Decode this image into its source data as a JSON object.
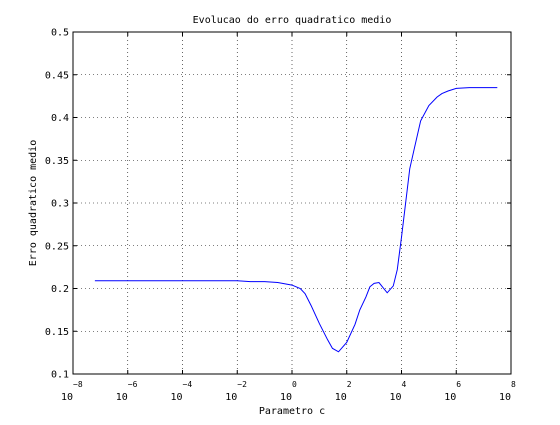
{
  "chart_data": {
    "type": "line",
    "title": "Evolucao do erro quadratico medio",
    "xlabel": "Parametro c",
    "ylabel": "Erro quadratico medio",
    "x_scale": "log",
    "xlim": [
      1e-08,
      100000000.0
    ],
    "ylim": [
      0.1,
      0.5
    ],
    "grid": true,
    "x_tick_base": "10",
    "x_ticks": [
      {
        "value": 1e-08,
        "exponent": "−8"
      },
      {
        "value": 1e-06,
        "exponent": "−6"
      },
      {
        "value": 0.0001,
        "exponent": "−4"
      },
      {
        "value": 0.01,
        "exponent": "−2"
      },
      {
        "value": 1,
        "exponent": "0"
      },
      {
        "value": 100.0,
        "exponent": "2"
      },
      {
        "value": 10000.0,
        "exponent": "4"
      },
      {
        "value": 1000000.0,
        "exponent": "6"
      },
      {
        "value": 100000000.0,
        "exponent": "8"
      }
    ],
    "y_ticks": [
      {
        "value": 0.1,
        "label": "0.1"
      },
      {
        "value": 0.15,
        "label": "0.15"
      },
      {
        "value": 0.2,
        "label": "0.2"
      },
      {
        "value": 0.25,
        "label": "0.25"
      },
      {
        "value": 0.3,
        "label": "0.3"
      },
      {
        "value": 0.35,
        "label": "0.35"
      },
      {
        "value": 0.4,
        "label": "0.4"
      },
      {
        "value": 0.45,
        "label": "0.45"
      },
      {
        "value": 0.5,
        "label": "0.5"
      }
    ],
    "series": [
      {
        "color": "#0000ff",
        "x": [
          6.3e-08,
          1e-07,
          1e-06,
          1e-05,
          0.0001,
          0.001,
          0.01,
          0.03,
          0.1,
          0.3,
          1,
          2,
          3,
          5,
          10,
          20,
          30,
          50,
          100,
          200,
          300,
          500,
          700,
          1000,
          1500,
          2000,
          3000,
          5000,
          7000,
          10000,
          20000,
          30000,
          50000,
          100000,
          200000,
          300000,
          500000,
          1000000,
          3000000,
          10000000,
          31600000
        ],
        "y": [
          0.209,
          0.209,
          0.209,
          0.209,
          0.209,
          0.209,
          0.209,
          0.208,
          0.208,
          0.207,
          0.204,
          0.2,
          0.194,
          0.18,
          0.159,
          0.14,
          0.13,
          0.126,
          0.137,
          0.158,
          0.175,
          0.19,
          0.202,
          0.206,
          0.207,
          0.202,
          0.195,
          0.203,
          0.222,
          0.26,
          0.34,
          0.365,
          0.396,
          0.414,
          0.424,
          0.428,
          0.431,
          0.434,
          0.435,
          0.435,
          0.435
        ]
      }
    ]
  }
}
